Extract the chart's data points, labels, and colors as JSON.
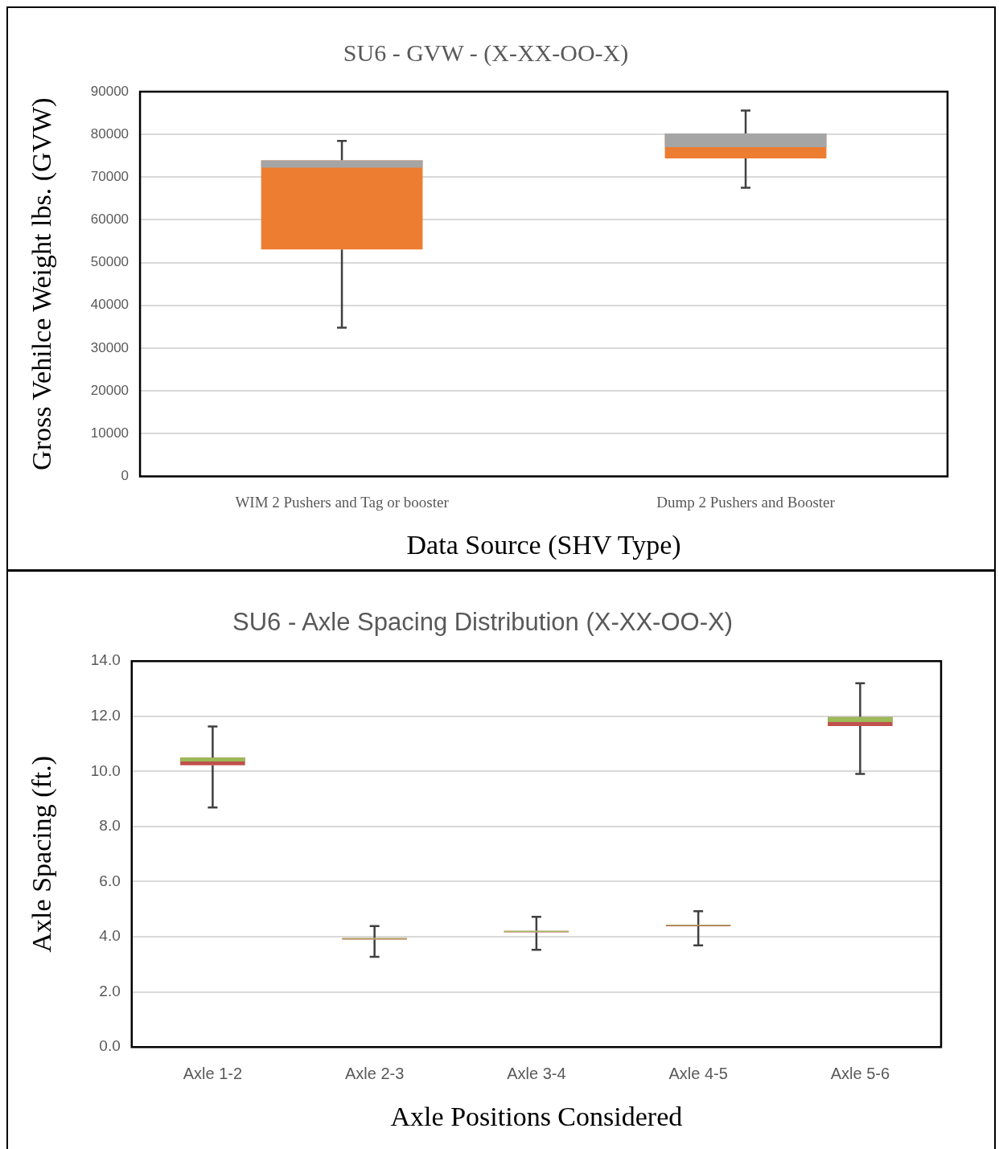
{
  "chart_data": [
    {
      "type": "box",
      "title": "SU6 - GVW - (X-XX-OO-X)",
      "xlabel": "Data Source (SHV Type)",
      "ylabel": "Gross Vehilce Weight lbs. (GVW)",
      "categories": [
        "WIM 2 Pushers and Tag or booster",
        "Dump 2 Pushers and Booster"
      ],
      "series": [
        {
          "color": "#ed7d31",
          "boxes": [
            {
              "low": 34800,
              "q1": 53100,
              "median": 72200,
              "q3": 73900,
              "high": 78500
            },
            {
              "low": 67500,
              "q1": 74400,
              "median": 77000,
              "q3": 80200,
              "high": 85600
            }
          ]
        }
      ],
      "ylim": [
        0,
        90000
      ],
      "yticks": [
        0,
        10000,
        20000,
        30000,
        40000,
        50000,
        60000,
        70000,
        80000,
        90000
      ],
      "grid": "y"
    },
    {
      "type": "box",
      "title": "SU6 - Axle Spacing Distribution (X-XX-OO-X)",
      "xlabel": "Axle Positions Considered",
      "ylabel": "Axle Spacing (ft.)",
      "categories": [
        "Axle 1-2",
        "Axle 2-3",
        "Axle 3-4",
        "Axle 4-5",
        "Axle 5-6"
      ],
      "series": [
        {
          "color": "#c0504d",
          "boxes": [
            {
              "low": 8.69,
              "q1": 10.22,
              "median": 10.36,
              "q3": 10.5,
              "high": 11.63
            },
            {
              "low": 3.27,
              "q1": 3.9,
              "median": 3.92,
              "q3": 3.95,
              "high": 4.39
            },
            {
              "low": 3.53,
              "q1": 4.16,
              "median": 4.18,
              "q3": 4.21,
              "high": 4.72
            },
            {
              "low": 3.69,
              "q1": 4.38,
              "median": 4.4,
              "q3": 4.43,
              "high": 4.93
            },
            {
              "low": 9.91,
              "q1": 11.64,
              "median": 11.79,
              "q3": 11.97,
              "high": 13.2
            }
          ]
        }
      ],
      "ylim": [
        0,
        14
      ],
      "yticks": [
        {
          "value": 0,
          "label": "0.0"
        },
        {
          "value": 2,
          "label": "2.0"
        },
        {
          "value": 4,
          "label": "4.0"
        },
        {
          "value": 6,
          "label": "6.0"
        },
        {
          "value": 8,
          "label": "8.0"
        },
        {
          "value": 10,
          "label": "10.0"
        },
        {
          "value": 12,
          "label": "12.0"
        },
        {
          "value": 14,
          "label": "14.0"
        }
      ],
      "grid": "y"
    }
  ]
}
